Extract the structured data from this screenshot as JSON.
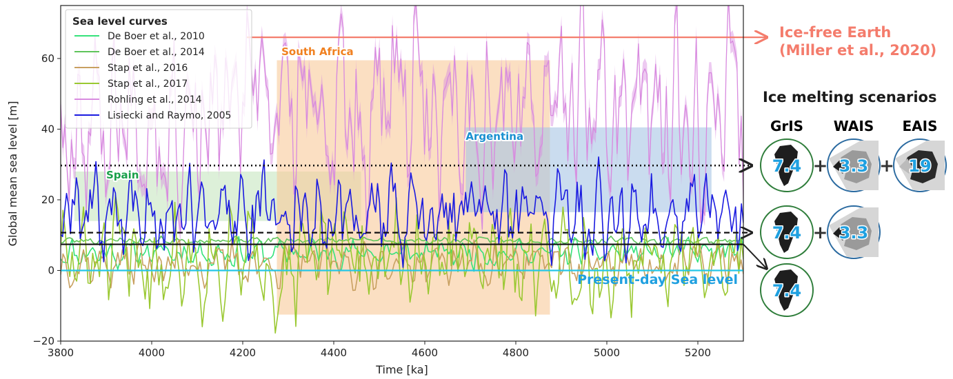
{
  "chart_data": {
    "type": "line",
    "xlabel": "Time [ka]",
    "ylabel": "Global mean sea level [m]",
    "xlim": [
      3800,
      5300
    ],
    "ylim": [
      -20,
      75
    ],
    "xticks": [
      3800,
      4000,
      4200,
      4400,
      4600,
      4800,
      5000,
      5200
    ],
    "yticks": [
      -20,
      0,
      20,
      40,
      60
    ],
    "legend": {
      "title": "Sea level curves",
      "placement": "top-left",
      "entries": [
        {
          "name": "De Boer et al., 2010",
          "color": "#34e27a"
        },
        {
          "name": "De Boer et al., 2014",
          "color": "#5ec45a"
        },
        {
          "name": "Stap et al., 2016",
          "color": "#c8a060"
        },
        {
          "name": "Stap et al., 2017",
          "color": "#9ac831"
        },
        {
          "name": "Rohling et al., 2014",
          "color": "#d88adf"
        },
        {
          "name": "Lisiecki and Raymo, 2005",
          "color": "#1a1ae0"
        }
      ]
    },
    "series": [
      {
        "name": "De Boer et al., 2010",
        "color": "#34e27a",
        "base": 5,
        "amp": 3,
        "seed": 11,
        "npts": 300
      },
      {
        "name": "De Boer et al., 2014",
        "color": "#5ec45a",
        "base": 8.5,
        "amp": 0.8,
        "seed": 23,
        "npts": 300
      },
      {
        "name": "Stap et al., 2016",
        "color": "#c8a060",
        "base": 2,
        "amp": 5,
        "seed": 37,
        "npts": 300
      },
      {
        "name": "Stap et al., 2017",
        "color": "#9ac831",
        "base": 3,
        "amp": 12,
        "seed": 51,
        "npts": 300
      },
      {
        "name": "Rohling et al., 2014",
        "color": "#d88adf",
        "base": 45,
        "amp": 22,
        "seed": 67,
        "npts": 320,
        "band": 3
      },
      {
        "name": "Lisiecki and Raymo, 2005",
        "color": "#1a1ae0",
        "base": 16,
        "amp": 10,
        "seed": 89,
        "npts": 350
      }
    ],
    "regions": [
      {
        "name": "Spain",
        "x": [
          3830,
          4460
        ],
        "y": [
          14,
          28
        ],
        "color": "#c6e6c0",
        "label_color": "#1aa04a",
        "label_x": 3900,
        "label_y": 26
      },
      {
        "name": "South Africa",
        "x": [
          4275,
          4875
        ],
        "y": [
          -12.5,
          59.5
        ],
        "color": "#f9c99a",
        "label_color": "#f08020",
        "label_x": 4285,
        "label_y": 61
      },
      {
        "name": "Argentina",
        "x": [
          4690,
          5230
        ],
        "y": [
          16.5,
          40.5
        ],
        "color": "#a7c4e4",
        "label_color": "#1a90d0",
        "label_x": 4690,
        "label_y": 37
      }
    ],
    "reference_lines": [
      {
        "name": "Ice-free Earth",
        "y": 66,
        "color": "#f47c6c",
        "style": "solid"
      },
      {
        "name": "GrIS+WAIS+EAIS",
        "y": 29.7,
        "color": "#111111",
        "style": "dotted"
      },
      {
        "name": "GrIS+WAIS",
        "y": 10.7,
        "color": "#111111",
        "style": "dashed"
      },
      {
        "name": "GrIS",
        "y": 7.4,
        "color": "#111111",
        "style": "solid"
      },
      {
        "name": "Present-day Sea level",
        "y": 0,
        "color": "#25c6e6",
        "style": "solid"
      }
    ],
    "annotations": {
      "ice_free_line1": "Ice-free Earth",
      "ice_free_line2": "(Miller et al., 2020)",
      "present_day": "Present-day Sea level"
    }
  },
  "scenarios": {
    "title": "Ice melting scenarios",
    "headers": [
      {
        "name": "GrIS",
        "color": "#1aa04a"
      },
      {
        "name": "WAIS",
        "color": "#1fa0e0"
      },
      {
        "name": "EAIS",
        "color": "#1fa0e0"
      }
    ],
    "rows": [
      {
        "items": [
          {
            "sheet": "GrIS",
            "value": "7.4"
          },
          {
            "sheet": "WAIS",
            "value": "3.3"
          },
          {
            "sheet": "EAIS",
            "value": "19"
          }
        ]
      },
      {
        "items": [
          {
            "sheet": "GrIS",
            "value": "7.4"
          },
          {
            "sheet": "WAIS",
            "value": "3.3"
          }
        ]
      },
      {
        "items": [
          {
            "sheet": "GrIS",
            "value": "7.4"
          }
        ]
      }
    ],
    "plus_sign": "+"
  }
}
